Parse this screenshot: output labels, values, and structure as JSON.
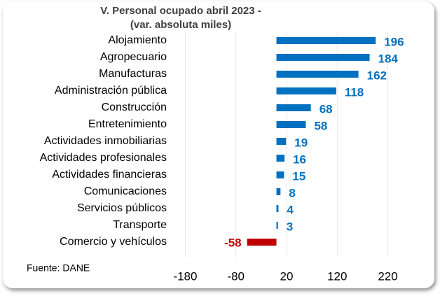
{
  "chart_data": {
    "type": "barh",
    "title": "V. Personal ocupado abril 2023 -",
    "subtitle": "(var. absoluta  miles)",
    "source": "Fuente: DANE",
    "categories": [
      "Alojamiento",
      "Agropecuario",
      "Manufacturas",
      "Administración pública",
      "Construcción",
      "Entretenimiento",
      "Actividades inmobiliarias",
      "Actividades profesionales",
      "Actividades financieras",
      "Comunicaciones",
      "Servicios públicos",
      "Transporte",
      "Comercio y vehículos"
    ],
    "values": [
      196,
      184,
      162,
      118,
      68,
      58,
      19,
      16,
      15,
      8,
      4,
      3,
      -58
    ],
    "positive_color": "#0070c0",
    "negative_color": "#c00000",
    "xlim": [
      -200,
      240
    ],
    "xticks": [
      -180,
      -80,
      20,
      120,
      220
    ],
    "grid": true
  }
}
